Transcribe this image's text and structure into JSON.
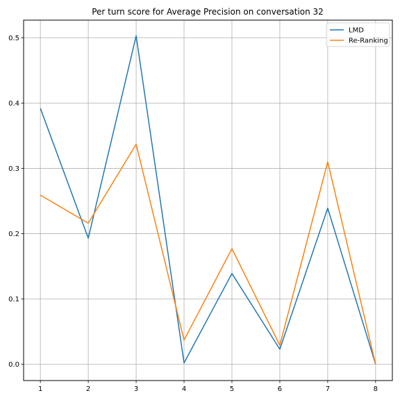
{
  "chart_data": {
    "type": "line",
    "title": "Per turn score for Average Precision on conversation 32",
    "xlabel": "",
    "ylabel": "",
    "x": [
      1,
      2,
      3,
      4,
      5,
      6,
      7,
      8
    ],
    "xlim": [
      0.65,
      8.35
    ],
    "ylim": [
      -0.025,
      0.527
    ],
    "x_ticks": [
      1,
      2,
      3,
      4,
      5,
      6,
      7,
      8
    ],
    "y_ticks": [
      "0.0",
      "0.1",
      "0.2",
      "0.3",
      "0.4",
      "0.5"
    ],
    "grid": true,
    "legend_position": "top-right",
    "series": [
      {
        "name": "LMD",
        "color": "#1f77b4",
        "values": [
          0.392,
          0.193,
          0.503,
          0.002,
          0.139,
          0.023,
          0.239,
          0.0
        ]
      },
      {
        "name": "Re-Ranking",
        "color": "#ff7f0e",
        "values": [
          0.259,
          0.216,
          0.337,
          0.037,
          0.177,
          0.029,
          0.31,
          0.0
        ]
      }
    ]
  }
}
